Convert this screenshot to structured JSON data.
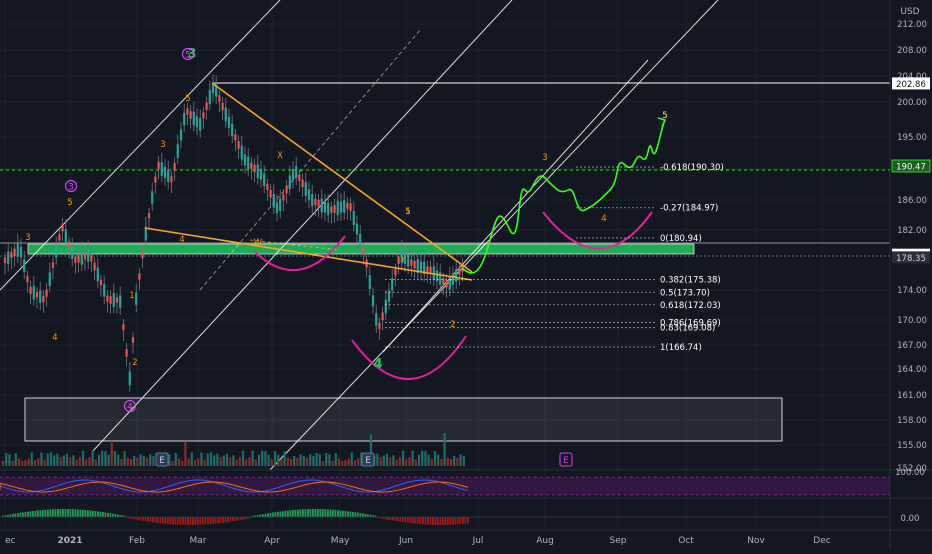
{
  "currency": "USD",
  "colors": {
    "background": "#131722",
    "grid": "#1e222d",
    "axis_text": "#b2b5be",
    "up": "#26a69a",
    "down": "#ef5350",
    "wick": "#787b86",
    "channel": "#ffffff",
    "trendline": "#f5a623",
    "wave": "#ff9800",
    "wave_major": "#22c55e",
    "circle_wave": "#e040fb",
    "projection": "#39ff14",
    "arc": "#e91e9a",
    "fib": "#ffffff",
    "support_zone": "#22c55e",
    "volume_up": "#1f6f66",
    "volume_down": "#8e2a2a",
    "osc_fill": "#3b1a4a",
    "macd_pos": "#1b9e55",
    "macd_neg": "#9e1b1b"
  },
  "chart_data": {
    "type": "candlestick",
    "symbol": "",
    "x_axis_labels": [
      "ec",
      "2021",
      "Feb",
      "Mar",
      "Apr",
      "May",
      "Jun",
      "Jul",
      "Aug",
      "Sep",
      "Oct",
      "Nov",
      "Dec"
    ],
    "y_ticks": [
      212.0,
      208.0,
      204.0,
      200.0,
      195.0,
      190.0,
      186.0,
      182.0,
      174.0,
      170.0,
      167.0,
      164.0,
      161.0,
      158.0,
      155.0,
      152.0
    ],
    "price_labels": [
      {
        "value": 202.86,
        "style": "white"
      },
      {
        "value": 190.47,
        "style": "green"
      },
      {
        "value": 178.71,
        "style": "white"
      },
      {
        "value": 178.35,
        "style": "dark"
      }
    ],
    "fib_levels": [
      {
        "ratio": "-0.618",
        "price": 190.3,
        "label": "-0.618(190.30)"
      },
      {
        "ratio": "-0.27",
        "price": 184.97,
        "label": "-0.27(184.97)"
      },
      {
        "ratio": "0",
        "price": 180.94,
        "label": "0(180.94)"
      },
      {
        "ratio": "0.382",
        "price": 175.38,
        "label": "0.382(175.38)"
      },
      {
        "ratio": "0.5",
        "price": 173.7,
        "label": "0.5(173.70)"
      },
      {
        "ratio": "0.618",
        "price": 172.03,
        "label": "0.618(172.03)"
      },
      {
        "ratio": "0.786",
        "price": 169.69,
        "label": "0.786(169.69)"
      },
      {
        "ratio": "0.83",
        "price": 169.08,
        "label": "0.83(169.08)"
      },
      {
        "ratio": "1",
        "price": 166.74,
        "label": "1(166.74)"
      }
    ],
    "wave_labels": [
      {
        "text": "3",
        "kind": "major"
      },
      {
        "text": "4",
        "kind": "major"
      },
      {
        "text": "3",
        "kind": "circle"
      },
      {
        "text": "4",
        "kind": "circle"
      },
      {
        "text": "5",
        "kind": "circle"
      },
      {
        "text": "3",
        "kind": "minor"
      },
      {
        "text": "5",
        "kind": "minor"
      },
      {
        "text": "4",
        "kind": "minor"
      },
      {
        "text": "1",
        "kind": "minor"
      },
      {
        "text": "2",
        "kind": "minor"
      },
      {
        "text": "3",
        "kind": "minor"
      },
      {
        "text": "4",
        "kind": "minor"
      },
      {
        "text": "5",
        "kind": "minor"
      },
      {
        "text": "5",
        "kind": "minor"
      },
      {
        "text": "X",
        "kind": "minor"
      },
      {
        "text": "W",
        "kind": "minor"
      },
      {
        "text": "Y",
        "kind": "minor"
      },
      {
        "text": "1",
        "kind": "minor"
      },
      {
        "text": "2",
        "kind": "minor"
      },
      {
        "text": "3",
        "kind": "minor"
      },
      {
        "text": "4",
        "kind": "minor"
      },
      {
        "text": "5",
        "kind": "minor"
      }
    ],
    "event_markers": [
      "E",
      "E",
      "E"
    ],
    "oscillator_ticks": [
      "100.00",
      "0.00"
    ],
    "macd_ticks": [
      "0.00"
    ],
    "grid": true
  }
}
